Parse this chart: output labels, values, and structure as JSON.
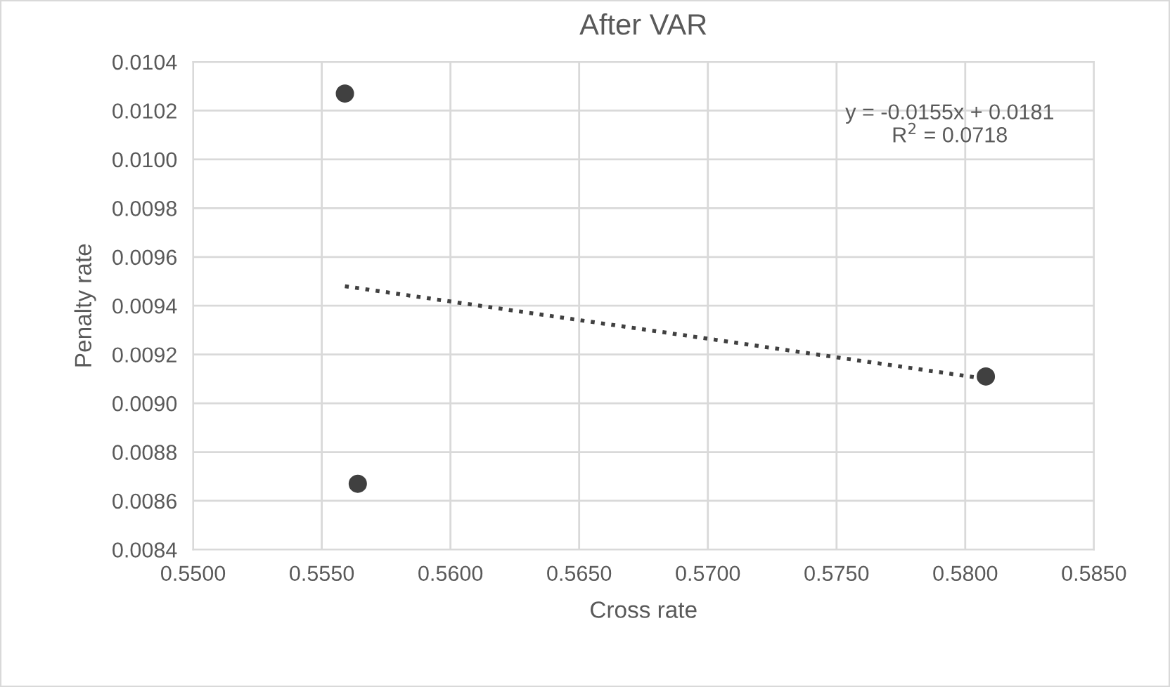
{
  "chart_data": {
    "type": "scatter",
    "title": "After VAR",
    "xlabel": "Cross rate",
    "ylabel": "Penalty rate",
    "xlim": [
      0.55,
      0.585
    ],
    "xticks": [
      {
        "value": 0.55,
        "label": "0.5500"
      },
      {
        "value": 0.555,
        "label": "0.5550"
      },
      {
        "value": 0.56,
        "label": "0.5600"
      },
      {
        "value": 0.565,
        "label": "0.5650"
      },
      {
        "value": 0.57,
        "label": "0.5700"
      },
      {
        "value": 0.575,
        "label": "0.5750"
      },
      {
        "value": 0.58,
        "label": "0.5800"
      },
      {
        "value": 0.585,
        "label": "0.5850"
      }
    ],
    "ylim": [
      0.0084,
      0.0104
    ],
    "yticks": [
      {
        "value": 0.0084,
        "label": "0.0084"
      },
      {
        "value": 0.0086,
        "label": "0.0086"
      },
      {
        "value": 0.0088,
        "label": "0.0088"
      },
      {
        "value": 0.009,
        "label": "0.0090"
      },
      {
        "value": 0.0092,
        "label": "0.0092"
      },
      {
        "value": 0.0094,
        "label": "0.0094"
      },
      {
        "value": 0.0096,
        "label": "0.0096"
      },
      {
        "value": 0.0098,
        "label": "0.0098"
      },
      {
        "value": 0.01,
        "label": "0.0100"
      },
      {
        "value": 0.0102,
        "label": "0.0102"
      },
      {
        "value": 0.0104,
        "label": "0.0104"
      }
    ],
    "grid": true,
    "legend": false,
    "series": [
      {
        "color": "#404040",
        "marker": "circle",
        "x": [
          0.5559,
          0.5564,
          0.5808
        ],
        "values": [
          0.01027,
          0.00867,
          0.00911
        ]
      },
      {
        "type": "line",
        "color": "#404040",
        "marker": "none",
        "line_style": "dotted",
        "x": [
          0.5559,
          0.5808
        ],
        "values": [
          0.00948,
          0.0091
        ]
      }
    ],
    "annotations": [
      "y = -0.0155x + 0.0181\nR$^{2}$ = 0.0718"
    ]
  }
}
